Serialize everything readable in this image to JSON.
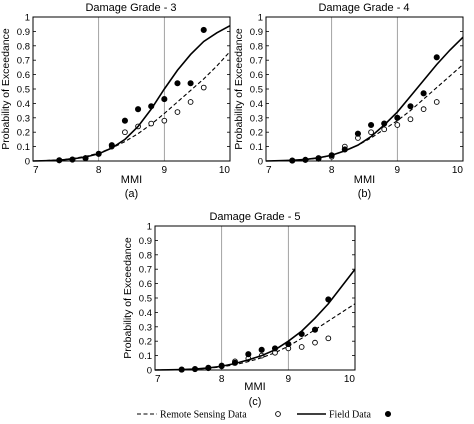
{
  "chart_data": [
    {
      "type": "line",
      "title": "Damage Grade - 3",
      "xlabel": "MMI",
      "ylabel": "Probability of Exceedance",
      "panel_label": "(a)",
      "xlim": [
        7,
        10
      ],
      "ylim": [
        0,
        1
      ],
      "xticks": [
        "7",
        "8",
        "9",
        "10"
      ],
      "yticks": [
        "0",
        "0.1",
        "0.2",
        "0.3",
        "0.4",
        "0.5",
        "0.6",
        "0.7",
        "0.8",
        "0.9",
        "1"
      ],
      "grid": true,
      "series": [
        {
          "name": "Remote Sensing Data",
          "style": "dashed-line",
          "x": [
            7.0,
            7.2,
            7.4,
            7.6,
            7.8,
            8.0,
            8.2,
            8.4,
            8.6,
            8.8,
            9.0,
            9.2,
            9.4,
            9.6,
            9.8,
            10.0
          ],
          "y": [
            0.0,
            0.003,
            0.008,
            0.017,
            0.032,
            0.055,
            0.09,
            0.135,
            0.19,
            0.255,
            0.33,
            0.41,
            0.49,
            0.57,
            0.66,
            0.76
          ]
        },
        {
          "name": "Remote Sensing Data",
          "style": "open-circle",
          "x": [
            7.4,
            7.6,
            7.8,
            8.0,
            8.2,
            8.4,
            8.6,
            8.8,
            9.0,
            9.2,
            9.4,
            9.6
          ],
          "y": [
            0.005,
            0.01,
            0.02,
            0.05,
            0.1,
            0.2,
            0.24,
            0.26,
            0.28,
            0.34,
            0.41,
            0.51
          ]
        },
        {
          "name": "Field Data",
          "style": "solid-line",
          "x": [
            7.0,
            7.2,
            7.4,
            7.6,
            7.8,
            8.0,
            8.2,
            8.4,
            8.6,
            8.8,
            9.0,
            9.2,
            9.4,
            9.6,
            9.8,
            10.0
          ],
          "y": [
            0.0,
            0.002,
            0.006,
            0.014,
            0.028,
            0.05,
            0.09,
            0.15,
            0.24,
            0.36,
            0.5,
            0.63,
            0.74,
            0.83,
            0.89,
            0.94
          ]
        },
        {
          "name": "Field Data",
          "style": "filled-circle",
          "x": [
            7.4,
            7.6,
            7.8,
            8.0,
            8.2,
            8.4,
            8.6,
            8.8,
            9.0,
            9.2,
            9.4,
            9.6
          ],
          "y": [
            0.005,
            0.01,
            0.02,
            0.05,
            0.11,
            0.28,
            0.36,
            0.38,
            0.43,
            0.54,
            0.54,
            0.91
          ]
        }
      ]
    },
    {
      "type": "line",
      "title": "Damage Grade - 4",
      "xlabel": "MMI",
      "ylabel": "Probability of Exceedance",
      "panel_label": "(b)",
      "xlim": [
        7,
        10
      ],
      "ylim": [
        0,
        1
      ],
      "xticks": [
        "7",
        "8",
        "9",
        "10"
      ],
      "yticks": [
        "0",
        "0.1",
        "0.2",
        "0.3",
        "0.4",
        "0.5",
        "0.6",
        "0.7",
        "0.8",
        "0.9",
        "1"
      ],
      "grid": true,
      "series": [
        {
          "name": "Remote Sensing Data",
          "style": "dashed-line",
          "x": [
            7.0,
            7.2,
            7.4,
            7.6,
            7.8,
            8.0,
            8.2,
            8.4,
            8.6,
            8.8,
            9.0,
            9.2,
            9.4,
            9.6,
            9.8,
            10.0
          ],
          "y": [
            0.0,
            0.002,
            0.005,
            0.01,
            0.02,
            0.04,
            0.07,
            0.11,
            0.16,
            0.22,
            0.28,
            0.35,
            0.43,
            0.51,
            0.59,
            0.67
          ]
        },
        {
          "name": "Remote Sensing Data",
          "style": "open-circle",
          "x": [
            7.4,
            7.6,
            7.8,
            8.0,
            8.2,
            8.4,
            8.6,
            8.8,
            9.0,
            9.2,
            9.4,
            9.6
          ],
          "y": [
            0.003,
            0.008,
            0.015,
            0.03,
            0.1,
            0.16,
            0.2,
            0.22,
            0.25,
            0.29,
            0.36,
            0.41
          ]
        },
        {
          "name": "Field Data",
          "style": "solid-line",
          "x": [
            7.0,
            7.2,
            7.4,
            7.6,
            7.8,
            8.0,
            8.2,
            8.4,
            8.6,
            8.8,
            9.0,
            9.2,
            9.4,
            9.6,
            9.8,
            10.0
          ],
          "y": [
            0.0,
            0.002,
            0.005,
            0.011,
            0.022,
            0.04,
            0.07,
            0.11,
            0.17,
            0.25,
            0.34,
            0.45,
            0.56,
            0.67,
            0.77,
            0.86
          ]
        },
        {
          "name": "Field Data",
          "style": "filled-circle",
          "x": [
            7.4,
            7.6,
            7.8,
            8.0,
            8.2,
            8.4,
            8.6,
            8.8,
            9.0,
            9.2,
            9.4,
            9.6
          ],
          "y": [
            0.003,
            0.008,
            0.02,
            0.04,
            0.08,
            0.19,
            0.25,
            0.26,
            0.3,
            0.38,
            0.47,
            0.72
          ]
        }
      ]
    },
    {
      "type": "line",
      "title": "Damage Grade - 5",
      "xlabel": "MMI",
      "ylabel": "Probability of Exceedance",
      "panel_label": "(c)",
      "xlim": [
        7,
        10
      ],
      "ylim": [
        0,
        1
      ],
      "xticks": [
        "7",
        "8",
        "9",
        "10"
      ],
      "yticks": [
        "0",
        "0.1",
        "0.2",
        "0.3",
        "0.4",
        "0.5",
        "0.6",
        "0.7",
        "0.8",
        "0.9",
        "1"
      ],
      "grid": true,
      "series": [
        {
          "name": "Remote Sensing Data",
          "style": "dashed-line",
          "x": [
            7.0,
            7.2,
            7.4,
            7.6,
            7.8,
            8.0,
            8.2,
            8.4,
            8.6,
            8.8,
            9.0,
            9.2,
            9.4,
            9.6,
            9.8,
            10.0
          ],
          "y": [
            0.0,
            0.001,
            0.003,
            0.006,
            0.012,
            0.022,
            0.037,
            0.058,
            0.085,
            0.12,
            0.165,
            0.22,
            0.28,
            0.34,
            0.4,
            0.46
          ]
        },
        {
          "name": "Remote Sensing Data",
          "style": "open-circle",
          "x": [
            7.4,
            7.6,
            7.8,
            8.0,
            8.2,
            8.4,
            8.6,
            8.8,
            9.0,
            9.2,
            9.4,
            9.6
          ],
          "y": [
            0.002,
            0.005,
            0.012,
            0.025,
            0.06,
            0.08,
            0.1,
            0.12,
            0.15,
            0.16,
            0.19,
            0.22
          ]
        },
        {
          "name": "Field Data",
          "style": "solid-line",
          "x": [
            7.0,
            7.2,
            7.4,
            7.6,
            7.8,
            8.0,
            8.2,
            8.4,
            8.6,
            8.8,
            9.0,
            9.2,
            9.4,
            9.6,
            9.8,
            10.0
          ],
          "y": [
            0.0,
            0.001,
            0.003,
            0.007,
            0.014,
            0.026,
            0.045,
            0.07,
            0.1,
            0.14,
            0.2,
            0.27,
            0.36,
            0.46,
            0.58,
            0.7
          ]
        },
        {
          "name": "Field Data",
          "style": "filled-circle",
          "x": [
            7.4,
            7.6,
            7.8,
            8.0,
            8.2,
            8.4,
            8.6,
            8.8,
            9.0,
            9.2,
            9.4,
            9.6
          ],
          "y": [
            0.003,
            0.007,
            0.015,
            0.03,
            0.05,
            0.11,
            0.14,
            0.15,
            0.18,
            0.25,
            0.28,
            0.49
          ]
        }
      ]
    }
  ],
  "legend": {
    "placement": "bottom",
    "items": [
      {
        "label": "Remote Sensing Data",
        "line": "dashed",
        "marker": "open-circle"
      },
      {
        "label": "Field Data",
        "line": "solid",
        "marker": "filled-circle"
      }
    ]
  },
  "colors": {
    "ink": "#000000",
    "grid": "#8c8c8c",
    "background": "#ffffff"
  }
}
